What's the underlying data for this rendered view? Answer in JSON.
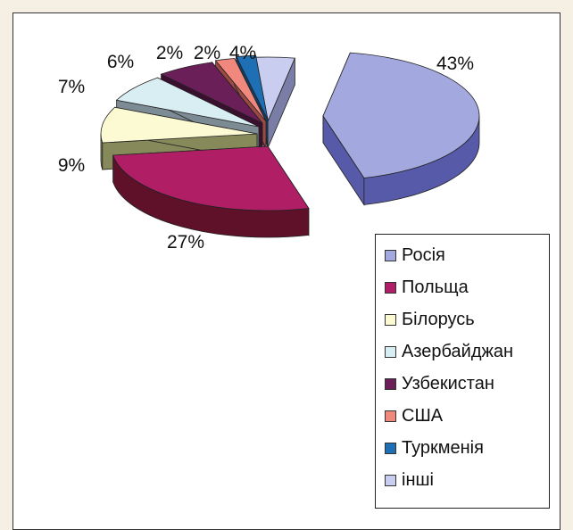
{
  "chart_data": {
    "type": "pie",
    "title": "",
    "categories": [
      "Росія",
      "Польща",
      "Білорусь",
      "Азербайджан",
      "Узбекистан",
      "США",
      "Туркменія",
      "інші"
    ],
    "values": [
      43,
      27,
      9,
      7,
      6,
      2,
      2,
      4
    ],
    "labels": [
      "43%",
      "27%",
      "9%",
      "7%",
      "6%",
      "2%",
      "2%",
      "4%"
    ],
    "colors": [
      "#a3a8de",
      "#b01f66",
      "#fcfad2",
      "#d9eef2",
      "#6b1f58",
      "#f0887e",
      "#1f6fb5",
      "#c9cdf0"
    ],
    "side_colors": [
      "#575aa8",
      "#5e1129",
      "#868a5a",
      "#7d8c94",
      "#3a0f30",
      "#9c4a42",
      "#123f6a",
      "#7a7da6"
    ],
    "legend_position": "right",
    "style": "3d-exploded"
  }
}
